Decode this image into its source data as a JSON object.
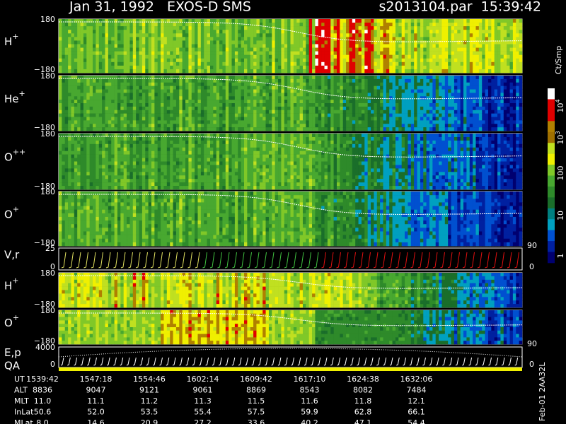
{
  "header": {
    "title": "Jan 31, 1992   EXOS-D SMS",
    "file": "s2013104.par  15:39:42"
  },
  "panels": [
    {
      "label": "H",
      "sup": "+",
      "top": "180",
      "bottom": "−180"
    },
    {
      "label": "He",
      "sup": "+",
      "top": "180",
      "bottom": "−180"
    },
    {
      "label": "O",
      "sup": "++",
      "top": "180",
      "bottom": "−180"
    },
    {
      "label": "O",
      "sup": "+",
      "top": "180",
      "bottom": "−180",
      "right_top": "90"
    },
    {
      "label": "V,r",
      "top": "25",
      "bottom": "0",
      "right_bottom": "0"
    },
    {
      "label": "H",
      "sup": "+",
      "top": "180",
      "bottom": "−180"
    },
    {
      "label": "O",
      "sup": "+",
      "top": "180",
      "bottom": "−180",
      "right_top": "90"
    },
    {
      "label": "E,p",
      "label2": "QA",
      "top": "4000",
      "bottom": "0",
      "right_bottom": "0"
    }
  ],
  "colorbar": {
    "title": "Ct/Smp",
    "labels": [
      {
        "base": "10",
        "exp": "4"
      },
      {
        "base": "10",
        "exp": "3"
      },
      {
        "base": "100"
      },
      {
        "base": "10"
      },
      {
        "base": "1"
      }
    ]
  },
  "footer": {
    "rows": [
      {
        "label": "UT",
        "values": [
          "1539:42",
          "1547:18",
          "1554:46",
          "1602:14",
          "1609:42",
          "1617:10",
          "1624:38",
          "1632:06"
        ]
      },
      {
        "label": "ALT",
        "values": [
          "8836",
          "9047",
          "9121",
          "9061",
          "8869",
          "8543",
          "8082",
          "7484"
        ]
      },
      {
        "label": "MLT",
        "values": [
          "11.0",
          "11.1",
          "11.2",
          "11.3",
          "11.5",
          "11.6",
          "11.8",
          "12.1"
        ]
      },
      {
        "label": "InLat",
        "values": [
          "50.6",
          "52.0",
          "53.5",
          "55.4",
          "57.5",
          "59.9",
          "62.8",
          "66.1"
        ]
      },
      {
        "label": "MLat",
        "values": [
          "8.0",
          "14.6",
          "20.9",
          "27.2",
          "33.6",
          "40.2",
          "47.1",
          "54.4"
        ]
      }
    ]
  },
  "stamp": "Feb-01 2AA32L"
}
